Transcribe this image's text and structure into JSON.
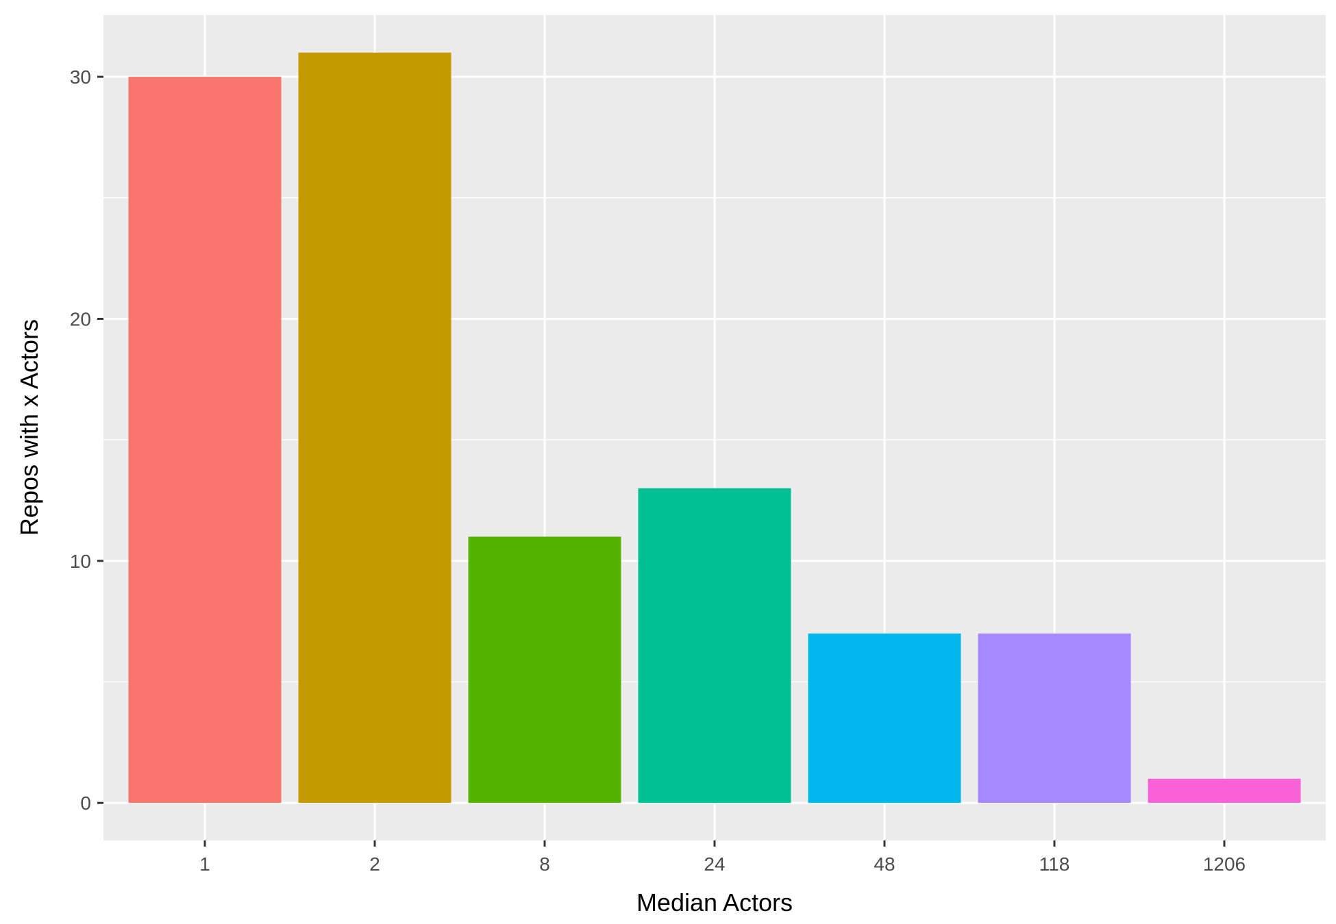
{
  "chart_data": {
    "type": "bar",
    "xlabel": "Median Actors",
    "ylabel": "Repos with x Actors",
    "categories": [
      "1",
      "2",
      "8",
      "24",
      "48",
      "118",
      "1206"
    ],
    "values": [
      30,
      31,
      11,
      13,
      7,
      7,
      1
    ],
    "ylim": [
      -1.55,
      32.55
    ],
    "yticks": [
      0,
      10,
      20,
      30
    ],
    "colors": [
      "#F8766D",
      "#C49A00",
      "#53B400",
      "#00C094",
      "#00B6EB",
      "#A58AFF",
      "#FB61D7"
    ],
    "panel_background": "#EBEBEB",
    "grid": true,
    "legend": "none"
  }
}
